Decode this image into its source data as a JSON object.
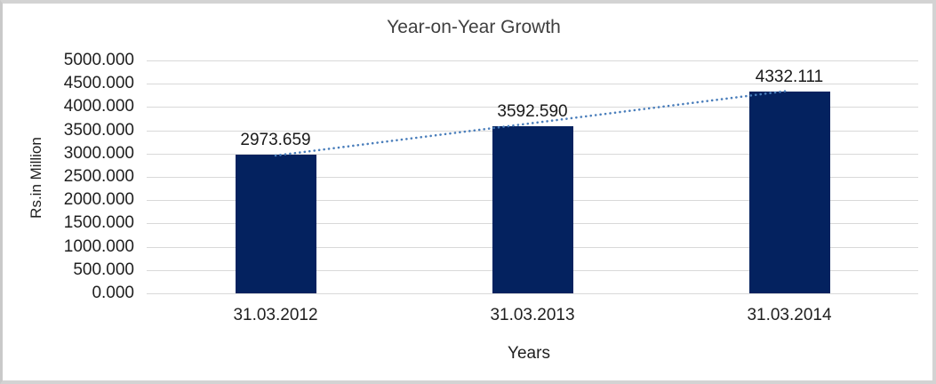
{
  "chart_data": {
    "type": "bar",
    "title": "Year-on-Year Growth",
    "xlabel": "Years",
    "ylabel": "Rs.in Million",
    "categories": [
      "31.03.2012",
      "31.03.2013",
      "31.03.2014"
    ],
    "values": [
      2973.659,
      3592.59,
      4332.111
    ],
    "value_labels": [
      "2973.659",
      "3592.590",
      "4332.111"
    ],
    "ylim": [
      0,
      5000
    ],
    "ytick_step": 500,
    "ytick_labels": [
      "5000.000",
      "4500.000",
      "4000.000",
      "3500.000",
      "3000.000",
      "2500.000",
      "2000.000",
      "1500.000",
      "1000.000",
      "500.000",
      "0.000"
    ],
    "grid": true,
    "legend": "none",
    "trendline": {
      "style": "dotted",
      "from_category_index": 0,
      "to_category_index": 2
    },
    "colors": {
      "bar": "#04225f",
      "trendline": "#4a7ebb",
      "gridline": "#d9d9d9",
      "tick_text": "#1f1f1f",
      "title_text": "#3f3f3f",
      "frame_border": "#d3d3d3",
      "background": "#ffffff"
    }
  }
}
